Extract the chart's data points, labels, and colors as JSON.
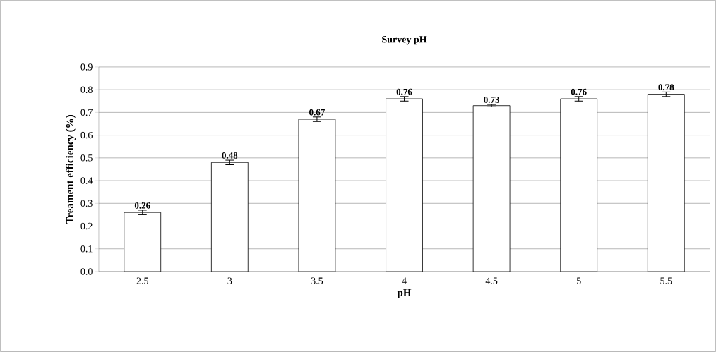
{
  "chart_data": {
    "type": "bar",
    "title": "Survey pH",
    "xlabel": "pH",
    "ylabel": "Treament efficiency (%)",
    "categories": [
      "2.5",
      "3",
      "3.5",
      "4",
      "4.5",
      "5",
      "5.5"
    ],
    "values": [
      0.26,
      0.48,
      0.67,
      0.76,
      0.73,
      0.76,
      0.78
    ],
    "errors": [
      0.01,
      0.01,
      0.01,
      0.01,
      0.005,
      0.01,
      0.01
    ],
    "color": "#ffffff",
    "ylim": [
      0,
      0.9
    ],
    "yticks": [
      {
        "value": 0,
        "label": "0.0"
      },
      0.1,
      0.2,
      0.3,
      0.4,
      0.5,
      0.6,
      0.7,
      0.8,
      0.9
    ],
    "grid": "y",
    "data_labels": true
  }
}
